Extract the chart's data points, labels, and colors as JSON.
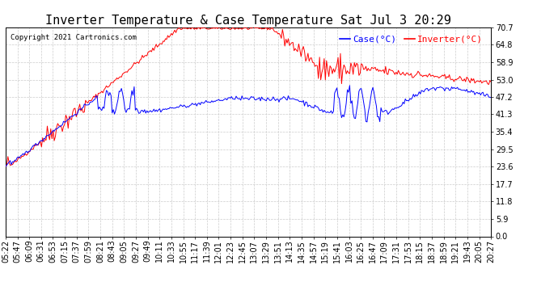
{
  "title": "Inverter Temperature & Case Temperature Sat Jul 3 20:29",
  "copyright": "Copyright 2021 Cartronics.com",
  "legend_case": "Case(°C)",
  "legend_inverter": "Inverter(°C)",
  "yticks": [
    0.0,
    5.9,
    11.8,
    17.7,
    23.6,
    29.5,
    35.4,
    41.3,
    47.2,
    53.0,
    58.9,
    64.8,
    70.7
  ],
  "ylim": [
    0.0,
    70.7
  ],
  "bg_color": "#ffffff",
  "grid_color": "#cccccc",
  "case_color": "blue",
  "inverter_color": "red",
  "title_fontsize": 11,
  "tick_fontsize": 7,
  "legend_fontsize": 8,
  "copyright_fontsize": 6.5,
  "xtick_labels": [
    "05:22",
    "05:47",
    "06:09",
    "06:31",
    "06:53",
    "07:15",
    "07:37",
    "07:59",
    "08:21",
    "08:43",
    "09:05",
    "09:27",
    "09:49",
    "10:11",
    "10:33",
    "10:55",
    "11:17",
    "11:39",
    "12:01",
    "12:23",
    "12:45",
    "13:07",
    "13:29",
    "13:51",
    "14:13",
    "14:35",
    "14:57",
    "15:19",
    "15:41",
    "16:03",
    "16:25",
    "16:47",
    "17:09",
    "17:31",
    "17:53",
    "18:15",
    "18:37",
    "18:59",
    "19:21",
    "19:43",
    "20:05",
    "20:27"
  ]
}
